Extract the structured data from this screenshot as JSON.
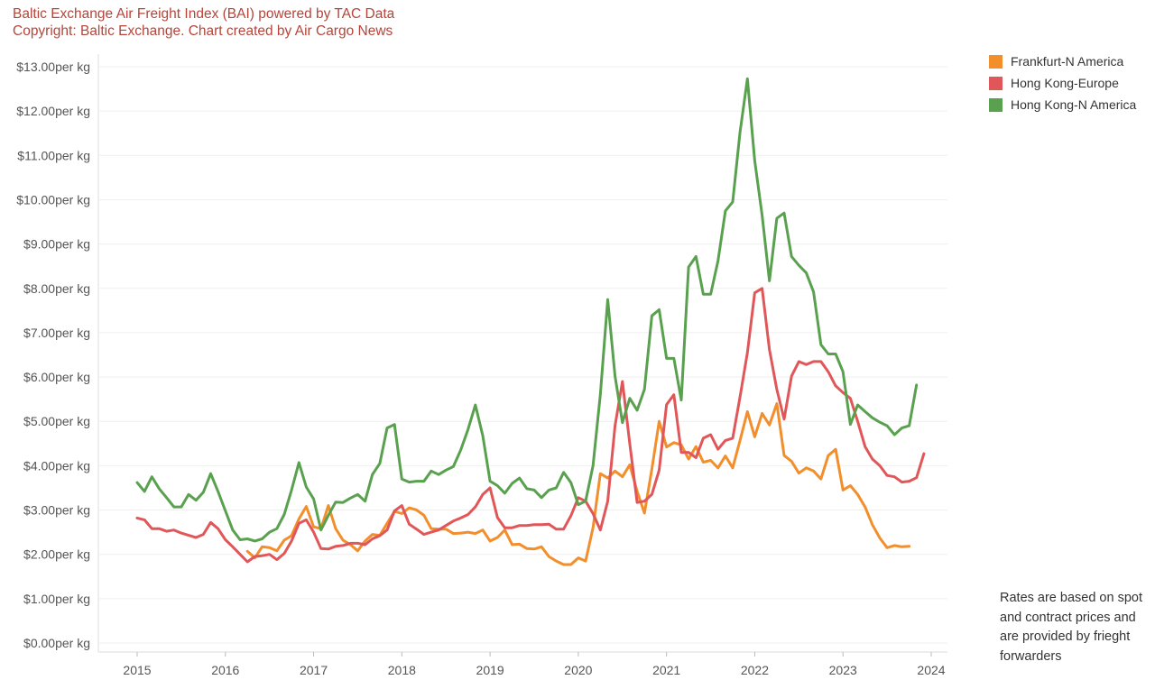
{
  "header": {
    "title": "Baltic Exchange Air Freight Index (BAI) powered by TAC Data",
    "subtitle": "Copyright: Baltic Exchange. Chart created by Air Cargo News"
  },
  "note": "Rates are based on spot and contract prices and are provided by frieght forwarders",
  "chart_data": {
    "type": "line",
    "title": "Baltic Exchange Air Freight Index (BAI) powered by TAC Data",
    "subtitle": "Copyright: Baltic Exchange. Chart created by Air Cargo News",
    "xlabel": "",
    "ylabel": "",
    "y_tick_suffix": "per kg",
    "ylim": [
      0,
      13
    ],
    "xlim": [
      2015,
      2024
    ],
    "y_ticks": [
      "$0.00per kg",
      "$1.00per kg",
      "$2.00per kg",
      "$3.00per kg",
      "$4.00per kg",
      "$5.00per kg",
      "$6.00per kg",
      "$7.00per kg",
      "$8.00per kg",
      "$9.00per kg",
      "$10.00per kg",
      "$11.00per kg",
      "$12.00per kg",
      "$13.00per kg"
    ],
    "x_ticks": [
      "2015",
      "2016",
      "2017",
      "2018",
      "2019",
      "2020",
      "2021",
      "2022",
      "2023",
      "2024"
    ],
    "legend_position": "top-right",
    "series": [
      {
        "name": "Frankfurt-N America",
        "color": "#f28e2b",
        "start": 2016.25,
        "step_months": 1,
        "values": [
          2.07,
          1.92,
          2.17,
          2.15,
          2.08,
          2.32,
          2.42,
          2.8,
          3.08,
          2.62,
          2.58,
          3.1,
          2.58,
          2.32,
          2.22,
          2.08,
          2.3,
          2.45,
          2.43,
          2.7,
          2.97,
          2.92,
          3.05,
          3.0,
          2.88,
          2.58,
          2.57,
          2.57,
          2.47,
          2.48,
          2.5,
          2.47,
          2.55,
          2.3,
          2.38,
          2.55,
          2.22,
          2.23,
          2.13,
          2.12,
          2.17,
          1.95,
          1.85,
          1.77,
          1.77,
          1.92,
          1.85,
          2.6,
          3.82,
          3.72,
          3.88,
          3.75,
          4.02,
          3.42,
          2.93,
          3.92,
          5.0,
          4.42,
          4.52,
          4.47,
          4.15,
          4.43,
          4.08,
          4.12,
          3.95,
          4.22,
          3.95,
          4.57,
          5.22,
          4.65,
          5.18,
          4.92,
          5.4,
          4.23,
          4.1,
          3.83,
          3.95,
          3.88,
          3.7,
          4.23,
          4.37,
          3.45,
          3.55,
          3.35,
          3.07,
          2.67,
          2.37,
          2.15,
          2.2,
          2.17,
          2.18
        ]
      },
      {
        "name": "Hong Kong-Europe",
        "color": "#e15759",
        "start": 2015.0,
        "step_months": 1,
        "values": [
          2.82,
          2.78,
          2.58,
          2.58,
          2.52,
          2.55,
          2.48,
          2.43,
          2.38,
          2.45,
          2.72,
          2.58,
          2.33,
          2.17,
          2.0,
          1.83,
          1.95,
          1.97,
          2.0,
          1.88,
          2.02,
          2.3,
          2.7,
          2.78,
          2.5,
          2.13,
          2.12,
          2.18,
          2.2,
          2.25,
          2.25,
          2.22,
          2.35,
          2.42,
          2.55,
          2.98,
          3.1,
          2.68,
          2.57,
          2.45,
          2.5,
          2.55,
          2.65,
          2.75,
          2.82,
          2.9,
          3.07,
          3.35,
          3.5,
          2.83,
          2.6,
          2.6,
          2.65,
          2.65,
          2.67,
          2.67,
          2.68,
          2.57,
          2.57,
          2.87,
          3.28,
          3.2,
          2.92,
          2.55,
          3.2,
          4.9,
          5.9,
          4.5,
          3.17,
          3.2,
          3.35,
          3.9,
          5.38,
          5.6,
          4.3,
          4.3,
          4.18,
          4.62,
          4.7,
          4.37,
          4.57,
          4.62,
          5.55,
          6.55,
          7.9,
          8.0,
          6.62,
          5.72,
          5.05,
          6.02,
          6.35,
          6.28,
          6.35,
          6.35,
          6.12,
          5.8,
          5.65,
          5.52,
          5.0,
          4.43,
          4.15,
          4.0,
          3.78,
          3.75,
          3.63,
          3.65,
          3.73,
          4.27
        ]
      },
      {
        "name": "Hong Kong-N America",
        "color": "#59a14f",
        "start": 2015.0,
        "step_months": 1,
        "values": [
          3.62,
          3.42,
          3.75,
          3.48,
          3.28,
          3.07,
          3.07,
          3.35,
          3.22,
          3.4,
          3.82,
          3.42,
          2.98,
          2.55,
          2.33,
          2.35,
          2.3,
          2.35,
          2.5,
          2.58,
          2.9,
          3.45,
          4.07,
          3.52,
          3.25,
          2.55,
          2.88,
          3.18,
          3.17,
          3.27,
          3.35,
          3.2,
          3.8,
          4.05,
          4.85,
          4.93,
          3.7,
          3.63,
          3.65,
          3.65,
          3.88,
          3.8,
          3.9,
          3.98,
          4.35,
          4.82,
          5.37,
          4.68,
          3.65,
          3.55,
          3.38,
          3.6,
          3.72,
          3.48,
          3.45,
          3.28,
          3.45,
          3.5,
          3.85,
          3.62,
          3.12,
          3.2,
          4.0,
          5.6,
          7.75,
          6.02,
          4.97,
          5.52,
          5.25,
          5.72,
          7.38,
          7.52,
          6.42,
          6.42,
          5.48,
          8.48,
          8.72,
          7.87,
          7.87,
          8.62,
          9.75,
          9.95,
          11.52,
          12.73,
          10.88,
          9.65,
          8.17,
          9.58,
          9.7,
          8.72,
          8.52,
          8.35,
          7.92,
          6.73,
          6.52,
          6.52,
          6.12,
          4.93,
          5.37,
          5.22,
          5.08,
          4.98,
          4.9,
          4.7,
          4.85,
          4.9,
          5.82
        ]
      }
    ]
  }
}
